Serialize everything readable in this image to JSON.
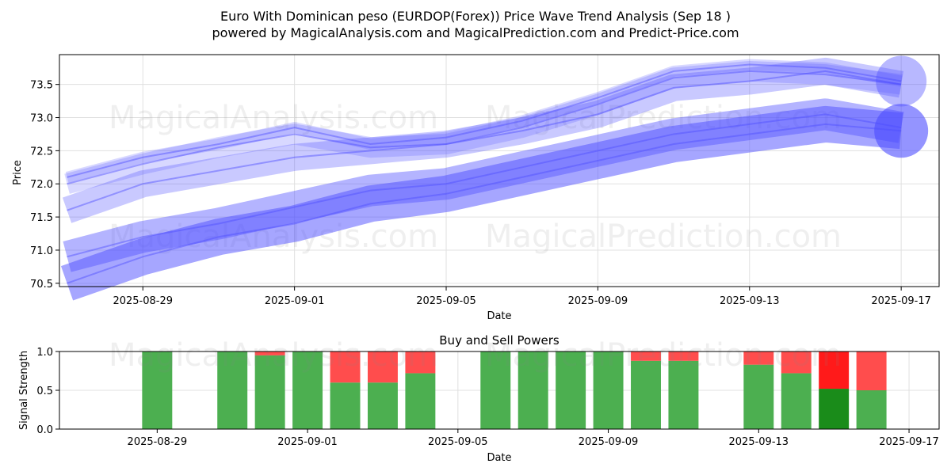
{
  "header": {
    "title_line1": "Euro With Dominican peso (EURDOP(Forex)) Price Wave Trend Analysis (Sep 18 )",
    "title_line2": "powered by MagicalAnalysis.com and MagicalPrediction.com and Predict-Price.com"
  },
  "watermarks": [
    "MagicalAnalysis.com",
    "MagicalPrediction.com"
  ],
  "colors": {
    "wave": "#4d4dff",
    "buy": "#4caf50",
    "sell": "#ff4d4d",
    "buy_strong": "#1a8c1a",
    "sell_strong": "#ff1a1a"
  },
  "chart_data": [
    {
      "type": "line",
      "title": "",
      "xlabel": "Date",
      "ylabel": "Price",
      "x_tick_labels": [
        "2025-08-29",
        "2025-09-01",
        "2025-09-05",
        "2025-09-09",
        "2025-09-13",
        "2025-09-17"
      ],
      "y_tick_labels": [
        "70.5",
        "71.0",
        "71.5",
        "72.0",
        "72.5",
        "73.0",
        "73.5"
      ],
      "x_tick_days": [
        2,
        6,
        10,
        14,
        18,
        22
      ],
      "x_day_range": [
        -0.2,
        23
      ],
      "y_ticks": [
        70.5,
        71.0,
        71.5,
        72.0,
        72.5,
        73.0,
        73.5
      ],
      "ylim": [
        70.45,
        73.95
      ],
      "x_days": [
        0,
        2,
        4,
        6,
        8,
        10,
        12,
        14,
        16,
        18,
        20,
        22
      ],
      "series": [
        {
          "name": "wave-upper",
          "values": [
            72.1,
            72.4,
            72.6,
            72.85,
            72.6,
            72.7,
            72.95,
            73.3,
            73.7,
            73.8,
            73.75,
            73.55
          ]
        },
        {
          "name": "wave-upper-2",
          "values": [
            72.0,
            72.3,
            72.55,
            72.75,
            72.55,
            72.6,
            72.85,
            73.2,
            73.6,
            73.7,
            73.65,
            73.5
          ]
        },
        {
          "name": "wave-mid",
          "values": [
            71.6,
            72.0,
            72.2,
            72.4,
            72.5,
            72.6,
            72.8,
            73.05,
            73.45,
            73.55,
            73.7,
            73.5
          ]
        },
        {
          "name": "wave-lower",
          "values": [
            70.9,
            71.2,
            71.4,
            71.65,
            71.9,
            72.0,
            72.25,
            72.5,
            72.75,
            72.9,
            73.05,
            72.85
          ]
        },
        {
          "name": "wave-bottom",
          "values": [
            70.5,
            70.9,
            71.2,
            71.4,
            71.7,
            71.85,
            72.1,
            72.35,
            72.6,
            72.75,
            72.9,
            72.8
          ]
        }
      ],
      "end_markers": [
        73.55,
        72.8
      ]
    },
    {
      "type": "bar",
      "title": "Buy and Sell Powers",
      "xlabel": "Date",
      "ylabel": "Signal Strength",
      "x_tick_labels": [
        "2025-08-29",
        "2025-09-01",
        "2025-09-05",
        "2025-09-09",
        "2025-09-13",
        "2025-09-17"
      ],
      "y_tick_labels": [
        "0.0",
        "0.5",
        "1.0"
      ],
      "x_tick_days": [
        2,
        6,
        10,
        14,
        18,
        22
      ],
      "x_day_range": [
        -0.6,
        22.8
      ],
      "y_ticks": [
        0.0,
        0.5,
        1.0
      ],
      "ylim": [
        0,
        1
      ],
      "bar_days": [
        2,
        4,
        5,
        6,
        7,
        8,
        9,
        11,
        12,
        13,
        14,
        15,
        16,
        18,
        19,
        20,
        21
      ],
      "series": [
        {
          "name": "Buy",
          "values": [
            1.0,
            1.0,
            0.95,
            1.0,
            0.6,
            0.6,
            0.72,
            1.0,
            1.0,
            1.0,
            1.0,
            0.88,
            0.88,
            0.83,
            0.72,
            0.52,
            0.5
          ]
        },
        {
          "name": "Sell",
          "values": [
            0.0,
            0.0,
            0.05,
            0.0,
            0.4,
            0.4,
            0.28,
            0.0,
            0.0,
            0.0,
            0.0,
            0.12,
            0.12,
            0.17,
            0.28,
            0.48,
            0.5
          ]
        }
      ],
      "strong_bar_day": 20
    }
  ]
}
